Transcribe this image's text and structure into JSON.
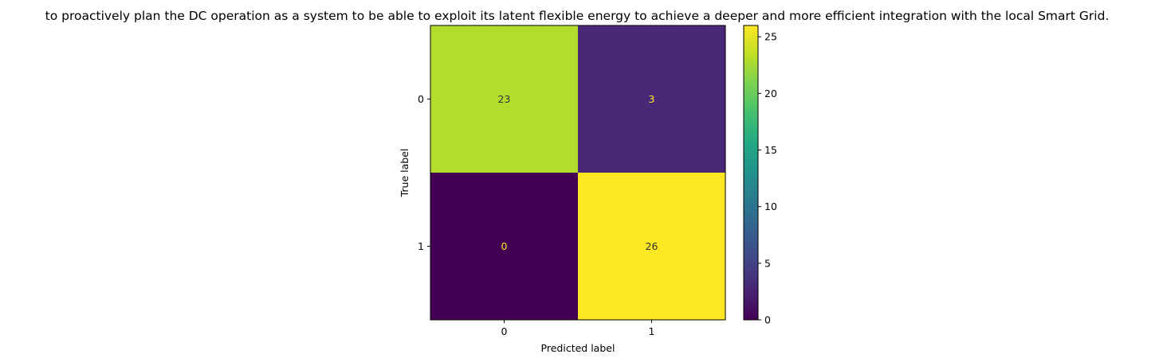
{
  "chart_data": {
    "type": "heatmap",
    "title": "to proactively plan the DC operation as a system to be able to exploit its latent flexible energy to achieve a deeper and more efficient integration with the local Smart Grid.",
    "xlabel": "Predicted label",
    "ylabel": "True label",
    "x_categories": [
      "0",
      "1"
    ],
    "y_categories": [
      "0",
      "1"
    ],
    "matrix": [
      [
        23,
        3
      ],
      [
        0,
        26
      ]
    ],
    "colormap": "viridis",
    "colorbar": {
      "range": [
        0,
        26
      ],
      "ticks": [
        0,
        5,
        10,
        15,
        20,
        25
      ],
      "tick_labels": [
        "0",
        "5",
        "10",
        "15",
        "20",
        "25"
      ]
    },
    "grid": false,
    "text_colors": {
      "on_dark": "#fde725",
      "on_light": "#333333"
    }
  }
}
